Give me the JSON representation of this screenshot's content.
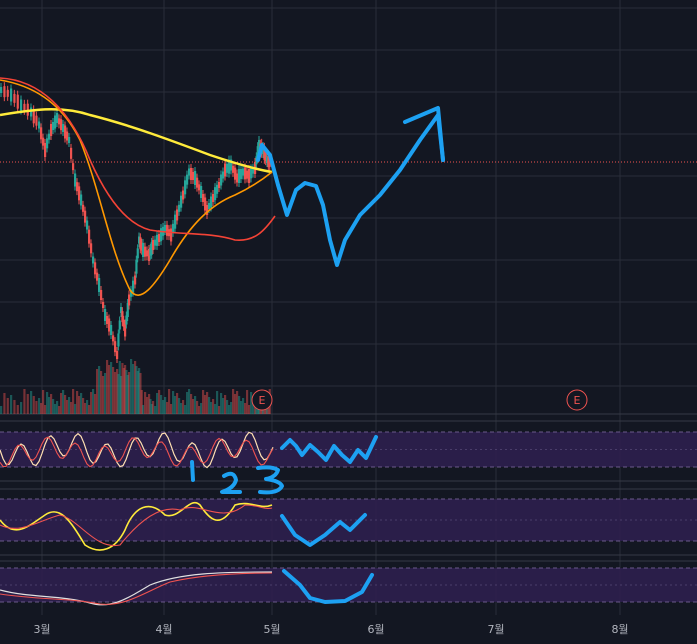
{
  "colors": {
    "background": "#131722",
    "grid": "#2a2e39",
    "up_candle": "#26a69a",
    "down_candle": "#ef5350",
    "price_line": "#ef5350",
    "ma_short": "#ff9800",
    "ma_mid": "#f44336",
    "ma_long": "#ffeb3b",
    "oscillator_band": "#2d1f4e",
    "osc_fast": "#ffe0b2",
    "osc_slow": "#ef5350",
    "osc_white": "#e0e0e0",
    "annotation": "#1da1f2"
  },
  "x_axis": {
    "months": [
      {
        "label": "3월"
      },
      {
        "label": "4월"
      },
      {
        "label": "5월"
      },
      {
        "label": "6월"
      },
      {
        "label": "7월"
      },
      {
        "label": "8월"
      }
    ]
  },
  "earnings_markers": [
    {
      "label": "E"
    },
    {
      "label": "E"
    }
  ],
  "annotations": {
    "wave_labels": [
      "1",
      "2",
      "3"
    ]
  },
  "chart_data": {
    "type": "candlestick",
    "panes": [
      "price",
      "volume",
      "oscillator-1",
      "oscillator-2",
      "oscillator-3"
    ],
    "price_pattern": "sharp decline in early March, V-shaped recovery through April, consolidation near the moving averages into early May",
    "hand_drawn_forecast": "down-swing then rally to new highs (upward arrow)",
    "grid": true
  }
}
